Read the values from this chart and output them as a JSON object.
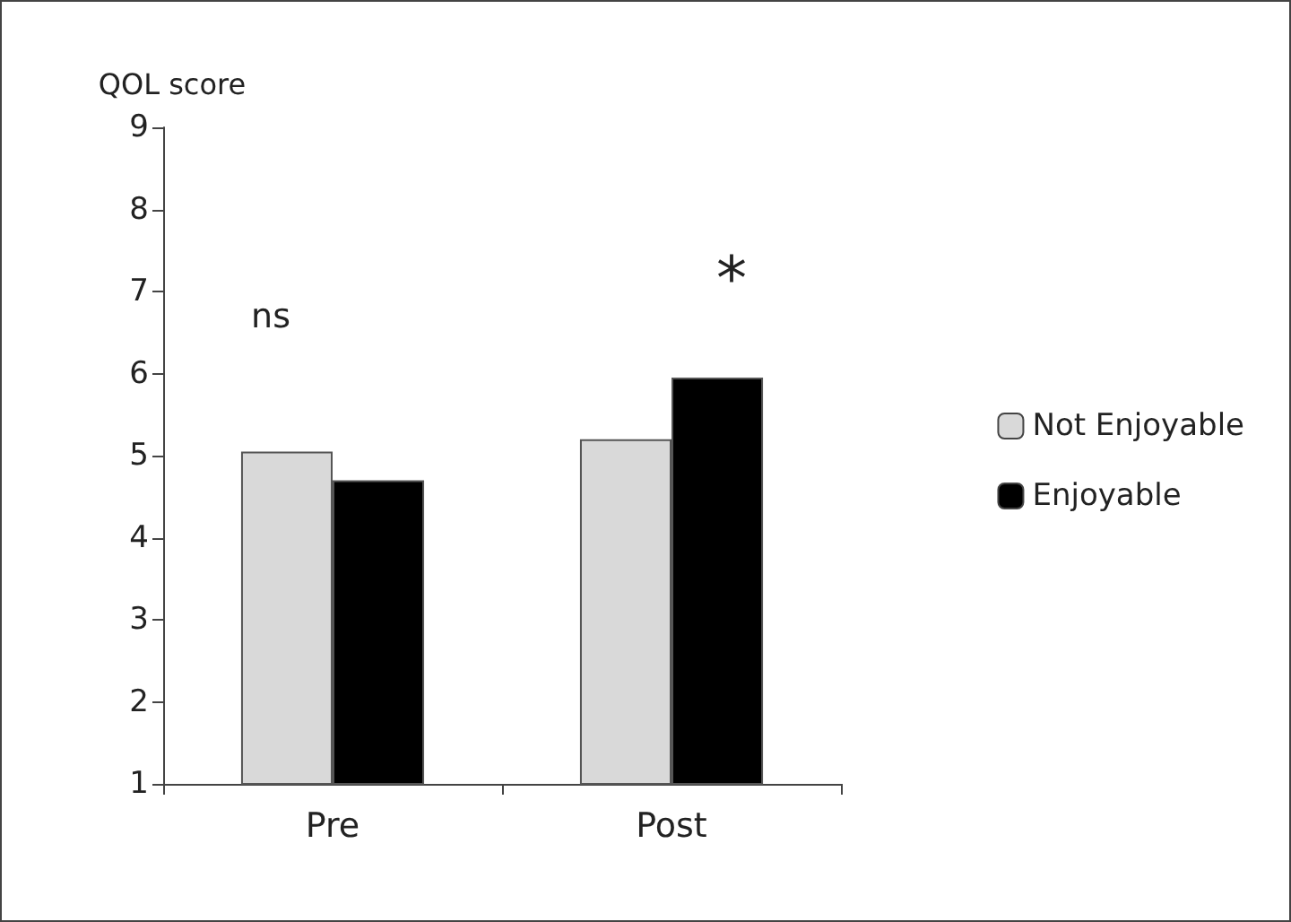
{
  "chart_data": {
    "type": "bar",
    "ylabel": "QOL score",
    "categories": [
      "Pre",
      "Post"
    ],
    "series": [
      {
        "name": "Not Enjoyable",
        "color": "#d9d9d9",
        "values": [
          5.05,
          5.2
        ]
      },
      {
        "name": "Enjoyable",
        "color": "#000000",
        "values": [
          4.7,
          5.95
        ]
      }
    ],
    "ylim": [
      1,
      9
    ],
    "yticks": [
      1,
      2,
      3,
      4,
      5,
      6,
      7,
      8,
      9
    ],
    "grid": false,
    "legend": "right",
    "annotations": [
      "ns",
      "*"
    ]
  }
}
